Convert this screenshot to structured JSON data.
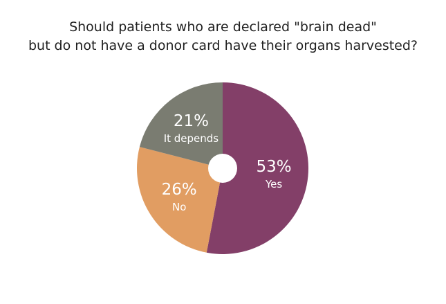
{
  "chart_data": {
    "type": "pie",
    "title_lines": [
      "Should patients who are declared \"brain dead\"",
      "but do not have a donor card have their organs harvested?"
    ],
    "slices": [
      {
        "label": "Yes",
        "value": 53,
        "value_label": "53%",
        "color": "#833f68"
      },
      {
        "label": "No",
        "value": 26,
        "value_label": "26%",
        "color": "#e19d62"
      },
      {
        "label": "It depends",
        "value": 21,
        "value_label": "21%",
        "color": "#7a7c71"
      }
    ],
    "donut_hole": true
  }
}
